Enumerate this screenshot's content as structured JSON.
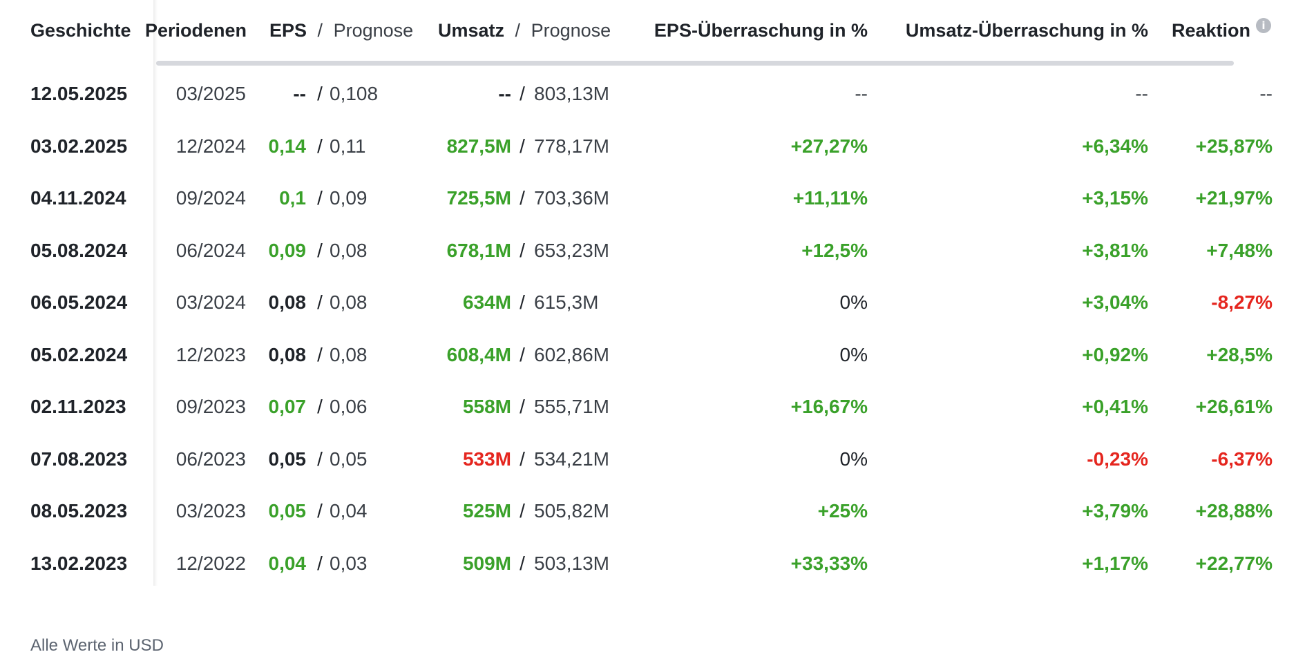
{
  "header": {
    "history": "Geschichte",
    "period_end": "Periodenende",
    "eps": "EPS",
    "eps_sep": "/",
    "eps_forecast": "Prognose",
    "revenue": "Umsatz",
    "revenue_sep": "/",
    "revenue_forecast": "Prognose",
    "eps_surprise": "EPS-Überraschung in %",
    "revenue_surprise": "Umsatz-Überraschung in %",
    "reaction": "Reaktion",
    "info_icon": "info-icon"
  },
  "colors": {
    "positive": "#3aa12a",
    "negative": "#e5261f",
    "neutral": "#1f2329"
  },
  "rows": [
    {
      "date": "12.05.2025",
      "period": "03/2025",
      "eps": "--",
      "eps_fc": "0,108",
      "rev": "--",
      "rev_fc": "803,13M",
      "eps_surprise": "--",
      "rev_surprise": "--",
      "reaction": "--",
      "eps_tone": "dark",
      "rev_tone": "dark",
      "eps_s_tone": "dim",
      "rev_s_tone": "dim",
      "react_tone": "dim"
    },
    {
      "date": "03.02.2025",
      "period": "12/2024",
      "eps": "0,14",
      "eps_fc": "0,11",
      "rev": "827,5M",
      "rev_fc": "778,17M",
      "eps_surprise": "+27,27%",
      "rev_surprise": "+6,34%",
      "reaction": "+25,87%",
      "eps_tone": "green",
      "rev_tone": "green",
      "eps_s_tone": "green",
      "rev_s_tone": "green",
      "react_tone": "green"
    },
    {
      "date": "04.11.2024",
      "period": "09/2024",
      "eps": "0,1",
      "eps_fc": "0,09",
      "rev": "725,5M",
      "rev_fc": "703,36M",
      "eps_surprise": "+11,11%",
      "rev_surprise": "+3,15%",
      "reaction": "+21,97%",
      "eps_tone": "green",
      "rev_tone": "green",
      "eps_s_tone": "green",
      "rev_s_tone": "green",
      "react_tone": "green"
    },
    {
      "date": "05.08.2024",
      "period": "06/2024",
      "eps": "0,09",
      "eps_fc": "0,08",
      "rev": "678,1M",
      "rev_fc": "653,23M",
      "eps_surprise": "+12,5%",
      "rev_surprise": "+3,81%",
      "reaction": "+7,48%",
      "eps_tone": "green",
      "rev_tone": "green",
      "eps_s_tone": "green",
      "rev_s_tone": "green",
      "react_tone": "green"
    },
    {
      "date": "06.05.2024",
      "period": "03/2024",
      "eps": "0,08",
      "eps_fc": "0,08",
      "rev": "634M",
      "rev_fc": "615,3M",
      "eps_surprise": "0%",
      "rev_surprise": "+3,04%",
      "reaction": "-8,27%",
      "eps_tone": "dark",
      "rev_tone": "green",
      "eps_s_tone": "dark",
      "rev_s_tone": "green",
      "react_tone": "red"
    },
    {
      "date": "05.02.2024",
      "period": "12/2023",
      "eps": "0,08",
      "eps_fc": "0,08",
      "rev": "608,4M",
      "rev_fc": "602,86M",
      "eps_surprise": "0%",
      "rev_surprise": "+0,92%",
      "reaction": "+28,5%",
      "eps_tone": "dark",
      "rev_tone": "green",
      "eps_s_tone": "dark",
      "rev_s_tone": "green",
      "react_tone": "green"
    },
    {
      "date": "02.11.2023",
      "period": "09/2023",
      "eps": "0,07",
      "eps_fc": "0,06",
      "rev": "558M",
      "rev_fc": "555,71M",
      "eps_surprise": "+16,67%",
      "rev_surprise": "+0,41%",
      "reaction": "+26,61%",
      "eps_tone": "green",
      "rev_tone": "green",
      "eps_s_tone": "green",
      "rev_s_tone": "green",
      "react_tone": "green"
    },
    {
      "date": "07.08.2023",
      "period": "06/2023",
      "eps": "0,05",
      "eps_fc": "0,05",
      "rev": "533M",
      "rev_fc": "534,21M",
      "eps_surprise": "0%",
      "rev_surprise": "-0,23%",
      "reaction": "-6,37%",
      "eps_tone": "dark",
      "rev_tone": "red",
      "eps_s_tone": "dark",
      "rev_s_tone": "red",
      "react_tone": "red"
    },
    {
      "date": "08.05.2023",
      "period": "03/2023",
      "eps": "0,05",
      "eps_fc": "0,04",
      "rev": "525M",
      "rev_fc": "505,82M",
      "eps_surprise": "+25%",
      "rev_surprise": "+3,79%",
      "reaction": "+28,88%",
      "eps_tone": "green",
      "rev_tone": "green",
      "eps_s_tone": "green",
      "rev_s_tone": "green",
      "react_tone": "green"
    },
    {
      "date": "13.02.2023",
      "period": "12/2022",
      "eps": "0,04",
      "eps_fc": "0,03",
      "rev": "509M",
      "rev_fc": "503,13M",
      "eps_surprise": "+33,33%",
      "rev_surprise": "+1,17%",
      "reaction": "+22,77%",
      "eps_tone": "green",
      "rev_tone": "green",
      "eps_s_tone": "green",
      "rev_s_tone": "green",
      "react_tone": "green"
    }
  ],
  "footnote": "Alle Werte in USD"
}
